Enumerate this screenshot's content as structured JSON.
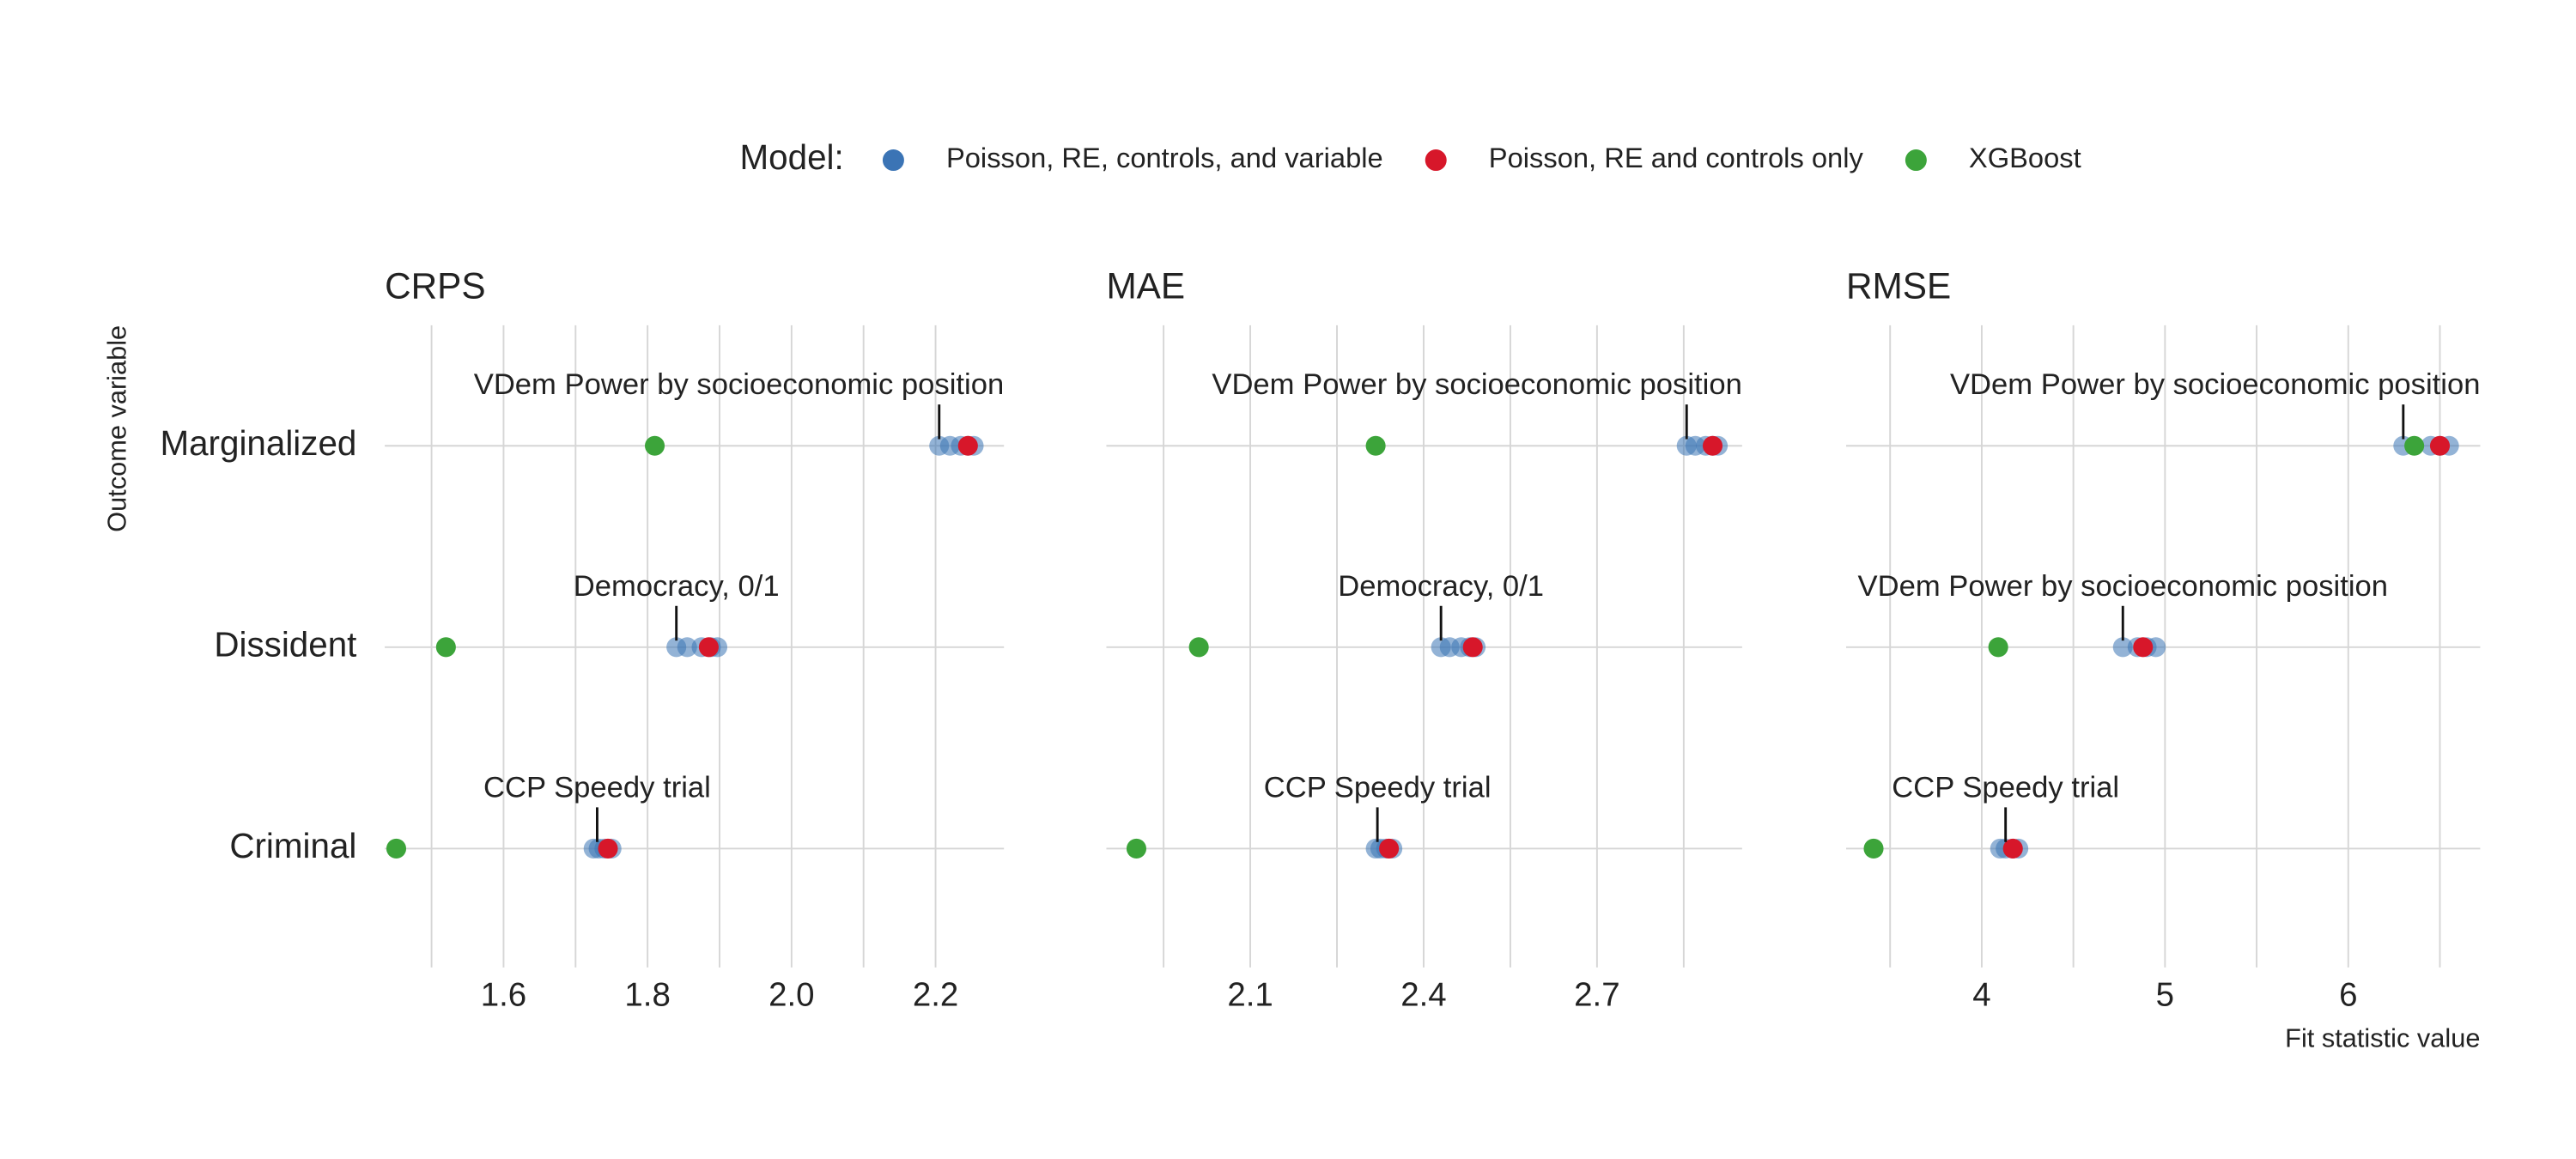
{
  "legend_title": "Model:",
  "ylabel": "Outcome variable",
  "xlabel": "Fit statistic value",
  "chart_data": [
    {
      "type": "dot",
      "title": "CRPS",
      "categories": [
        "Marginalized",
        "Dissident",
        "Criminal"
      ],
      "xlim": [
        1.435,
        2.295
      ],
      "xticks": [
        1.6,
        1.8,
        {
          "value": 2,
          "label": "2.0"
        },
        2.2
      ],
      "minor_xticks": [
        1.5,
        1.7,
        1.9,
        2.1
      ],
      "series": [
        {
          "name": "Poisson, RE, controls, and variable",
          "color": "#3b74b5",
          "values": [
            [
              2.205,
              2.22,
              2.235,
              2.245,
              2.253
            ],
            [
              1.84,
              1.855,
              1.875,
              1.888,
              1.897
            ],
            [
              1.725,
              1.732,
              1.74,
              1.75
            ]
          ]
        },
        {
          "name": "Poisson, RE and controls only",
          "color": "#d7172a",
          "values": [
            2.245,
            1.885,
            1.745
          ]
        },
        {
          "name": "XGBoost",
          "color": "#3ca43a",
          "values": [
            1.81,
            1.52,
            1.451
          ]
        }
      ],
      "annotations": [
        {
          "label": "VDem Power by socioeconomic position",
          "category": 0,
          "x": 2.205
        },
        {
          "label": "Democracy, 0/1",
          "category": 1,
          "x": 1.84
        },
        {
          "label": "CCP Speedy trial",
          "category": 2,
          "x": 1.73
        }
      ]
    },
    {
      "type": "dot",
      "title": "MAE",
      "xlim": [
        1.851,
        2.951
      ],
      "xticks": [
        2.1,
        2.4,
        2.7
      ],
      "minor_xticks": [
        1.95,
        2.25,
        2.55,
        2.85
      ],
      "series": [
        {
          "color": "#3b74b5",
          "values": [
            [
              2.855,
              2.87,
              2.888,
              2.9,
              2.909
            ],
            [
              2.43,
              2.445,
              2.465,
              2.48,
              2.49
            ],
            [
              2.317,
              2.325,
              2.335,
              2.346
            ]
          ]
        },
        {
          "color": "#d7172a",
          "values": [
            2.9,
            2.485,
            2.34
          ]
        },
        {
          "color": "#3ca43a",
          "values": [
            2.317,
            2.011,
            1.903
          ]
        }
      ],
      "annotations": [
        {
          "label": "VDem Power by socioeconomic position",
          "category": 0,
          "x": 2.855
        },
        {
          "label": "Democracy, 0/1",
          "category": 1,
          "x": 2.43
        },
        {
          "label": "CCP Speedy trial",
          "category": 2,
          "x": 2.32
        }
      ]
    },
    {
      "type": "dot",
      "title": "RMSE",
      "xlim": [
        3.26,
        6.72
      ],
      "xticks": [
        4,
        5,
        6
      ],
      "minor_xticks": [
        3.5,
        4.5,
        5.5,
        6.5
      ],
      "series": [
        {
          "color": "#3b74b5",
          "values": [
            [
              6.3,
              6.45,
              6.5,
              6.55
            ],
            [
              4.77,
              4.85,
              4.9,
              4.95
            ],
            [
              4.1,
              4.13,
              4.17,
              4.2
            ]
          ]
        },
        {
          "color": "#d7172a",
          "values": [
            6.5,
            4.88,
            4.17
          ]
        },
        {
          "color": "#3ca43a",
          "values": [
            6.36,
            4.09,
            3.41
          ]
        }
      ],
      "annotations": [
        {
          "label": "VDem Power by socioeconomic position",
          "category": 0,
          "x": 6.3
        },
        {
          "label": "VDem Power by socioeconomic position",
          "category": 1,
          "x": 4.77
        },
        {
          "label": "CCP Speedy trial",
          "category": 2,
          "x": 4.13
        }
      ]
    }
  ]
}
